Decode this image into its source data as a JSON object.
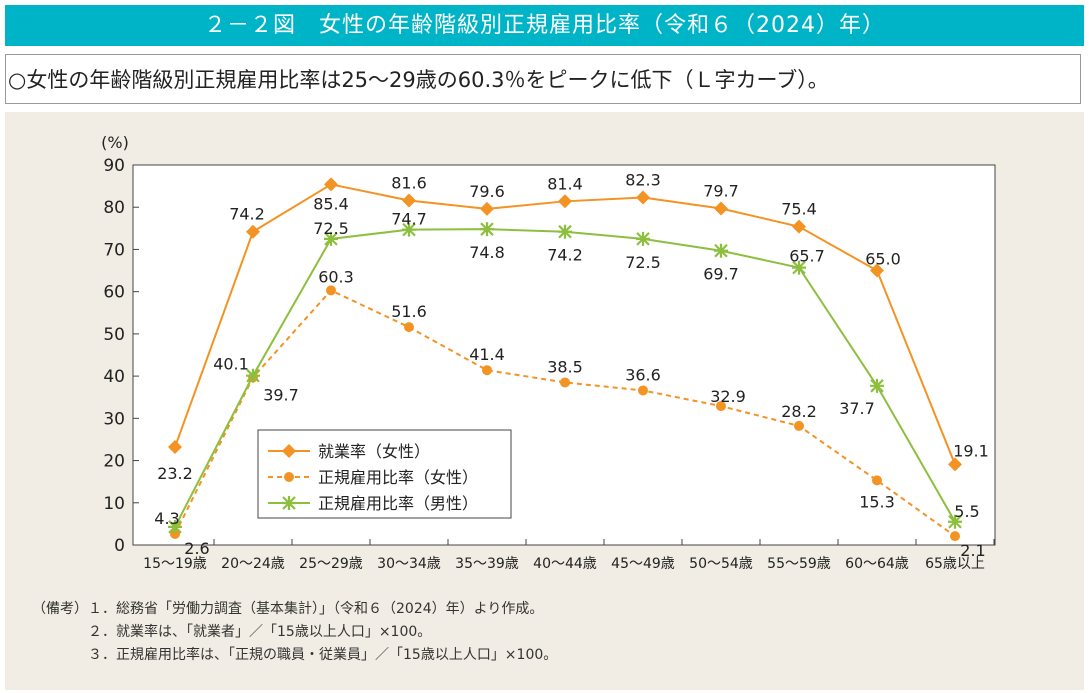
{
  "title": "２－２図　女性の年齢階級別正規雇用比率（令和６（2024）年）",
  "summary": "○女性の年齢階級別正規雇用比率は25～29歳の60.3％をピークに低下（Ｌ字カーブ）。",
  "notes": [
    "（備考）１．総務省「労働力調査（基本集計）」（令和６（2024）年）より作成。",
    "　　　　２．就業率は、「就業者」／「15歳以上人口」×100。",
    "　　　　３．正規雇用比率は、「正規の職員・従業員」／「15歳以上人口」×100。"
  ],
  "chart_data": {
    "type": "line",
    "ylabel": "(%)",
    "ylim": [
      0,
      90
    ],
    "yticks": [
      0,
      10,
      20,
      30,
      40,
      50,
      60,
      70,
      80,
      90
    ],
    "grid": false,
    "legend_position": "bottom-left",
    "categories": [
      "15～19歳",
      "20～24歳",
      "25～29歳",
      "30～34歳",
      "35～39歳",
      "40～44歳",
      "45～49歳",
      "50～54歳",
      "55～59歳",
      "60～64歳",
      "65歳以上"
    ],
    "series": [
      {
        "name": "就業率（女性）",
        "color": "#F39323",
        "marker": "diamond",
        "dash": false,
        "values": [
          23.2,
          74.2,
          85.4,
          81.6,
          79.6,
          81.4,
          82.3,
          79.7,
          75.4,
          65.0,
          19.1
        ]
      },
      {
        "name": "正規雇用比率（女性）",
        "color": "#F39323",
        "marker": "circle",
        "dash": true,
        "values": [
          2.6,
          39.7,
          60.3,
          51.6,
          41.4,
          38.5,
          36.6,
          32.9,
          28.2,
          15.3,
          2.1
        ]
      },
      {
        "name": "正規雇用比率（男性）",
        "color": "#8DBF3F",
        "marker": "asterisk",
        "dash": false,
        "values": [
          4.3,
          40.1,
          72.5,
          74.7,
          74.8,
          74.2,
          72.5,
          69.7,
          65.7,
          37.7,
          5.5
        ]
      }
    ]
  }
}
